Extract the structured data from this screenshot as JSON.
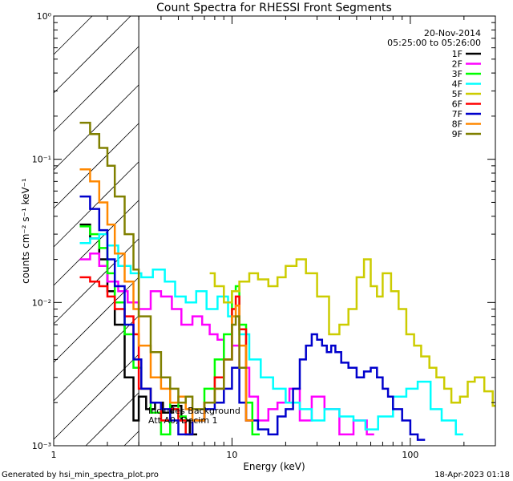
{
  "chart_data": {
    "type": "line",
    "title": "Count Spectra for RHESSI Front Segments",
    "xlabel": "Energy (keV)",
    "ylabel": "counts cm⁻² s⁻¹ keV⁻¹",
    "xscale": "log",
    "yscale": "log",
    "xlim": [
      1,
      300
    ],
    "ylim": [
      0.001,
      1
    ],
    "x_ticks": [
      {
        "value": 1,
        "label": "1"
      },
      {
        "value": 10,
        "label": "10"
      },
      {
        "value": 100,
        "label": "100"
      }
    ],
    "y_ticks": [
      {
        "value": 1,
        "label": "10⁰"
      },
      {
        "value": 0.1,
        "label": "10⁻¹"
      },
      {
        "value": 0.01,
        "label": "10⁻²"
      },
      {
        "value": 0.001,
        "label": "10⁻³"
      }
    ],
    "date": "20-Nov-2014",
    "time_range": "05:25:00 to 05:26:00",
    "shaded_region": {
      "x_start": 1,
      "x_end": 3
    },
    "annotation_lines": [
      "Includes Background",
      "Att A0, Decim 1"
    ],
    "footer_left": "Generated by hsi_min_spectra_plot.pro",
    "footer_right": "18-Apr-2023 01:18",
    "legend_position": "top-right",
    "series": [
      {
        "name": "1F",
        "color": "#000000",
        "x": [
          1.4,
          1.6,
          1.8,
          2.0,
          2.2,
          2.5,
          2.8,
          3.0,
          3.3,
          3.7,
          4.1,
          4.6,
          5.2,
          5.8
        ],
        "y": [
          0.035,
          0.028,
          0.02,
          0.012,
          0.007,
          0.003,
          0.0015,
          0.0022,
          0.0018,
          0.002,
          0.0017,
          0.0019,
          0.0015,
          0.0012
        ]
      },
      {
        "name": "2F",
        "color": "#ff00ff",
        "x": [
          1.4,
          1.6,
          1.8,
          2.0,
          2.3,
          2.6,
          3.0,
          3.5,
          4.0,
          4.6,
          5.2,
          6.0,
          6.8,
          7.5,
          8.3,
          9.0,
          10.0,
          11.0,
          12.5,
          14.0,
          16.0,
          18.0,
          21.0,
          24.0,
          28.0,
          33.0,
          40.0,
          48.0,
          57.0
        ],
        "y": [
          0.02,
          0.022,
          0.018,
          0.014,
          0.012,
          0.01,
          0.009,
          0.012,
          0.011,
          0.009,
          0.007,
          0.008,
          0.007,
          0.006,
          0.0055,
          0.004,
          0.005,
          0.0035,
          0.0022,
          0.0015,
          0.0018,
          0.002,
          0.0025,
          0.0015,
          0.0022,
          0.0018,
          0.0012,
          0.0015,
          0.0012
        ]
      },
      {
        "name": "3F",
        "color": "#00ff00",
        "x": [
          1.4,
          1.6,
          1.8,
          2.0,
          2.2,
          2.5,
          2.8,
          3.1,
          3.5,
          4.0,
          4.5,
          5.0,
          5.5,
          6.0,
          7.0,
          8.0,
          9.0,
          10.0,
          10.5,
          11.0,
          12.0,
          13.0
        ],
        "y": [
          0.034,
          0.03,
          0.024,
          0.016,
          0.01,
          0.006,
          0.0035,
          0.0025,
          0.0017,
          0.0012,
          0.002,
          0.0016,
          0.0012,
          0.0015,
          0.0025,
          0.004,
          0.006,
          0.012,
          0.013,
          0.007,
          0.002,
          0.0012
        ]
      },
      {
        "name": "4F",
        "color": "#00ffff",
        "x": [
          1.4,
          1.6,
          1.8,
          2.0,
          2.3,
          2.7,
          3.1,
          3.6,
          4.2,
          4.8,
          5.5,
          6.3,
          7.2,
          8.3,
          9.5,
          11.0,
          12.5,
          14.5,
          17.0,
          20.0,
          24.0,
          28.0,
          33.0,
          40.0,
          48.0,
          56.0,
          66.0,
          80.0,
          95.0,
          110.0,
          130.0,
          150.0,
          180.0
        ],
        "y": [
          0.026,
          0.028,
          0.03,
          0.025,
          0.018,
          0.016,
          0.015,
          0.017,
          0.014,
          0.011,
          0.01,
          0.012,
          0.009,
          0.011,
          0.008,
          0.006,
          0.004,
          0.003,
          0.0025,
          0.002,
          0.0018,
          0.0015,
          0.0018,
          0.0016,
          0.0015,
          0.0013,
          0.0016,
          0.0022,
          0.0025,
          0.0028,
          0.0018,
          0.0015,
          0.0012
        ]
      },
      {
        "name": "5F",
        "color": "#cccc00",
        "x": [
          7.5,
          8.0,
          9.0,
          10.0,
          11.0,
          12.5,
          14.0,
          16.0,
          18.0,
          20.0,
          23.0,
          26.0,
          30.0,
          35.0,
          40.0,
          45.0,
          50.0,
          55.0,
          60.0,
          65.0,
          70.0,
          78.0,
          86.0,
          95.0,
          105.0,
          115.0,
          128.0,
          140.0,
          155.0,
          170.0,
          190.0,
          210.0,
          230.0,
          260.0,
          290.0
        ],
        "y": [
          0.016,
          0.013,
          0.01,
          0.012,
          0.014,
          0.016,
          0.0145,
          0.013,
          0.015,
          0.018,
          0.02,
          0.016,
          0.011,
          0.006,
          0.007,
          0.009,
          0.015,
          0.02,
          0.013,
          0.011,
          0.016,
          0.012,
          0.009,
          0.006,
          0.005,
          0.0042,
          0.0035,
          0.003,
          0.0025,
          0.002,
          0.0022,
          0.0028,
          0.003,
          0.0024,
          0.0019
        ]
      },
      {
        "name": "6F",
        "color": "#ff0000",
        "x": [
          1.4,
          1.6,
          1.8,
          2.0,
          2.2,
          2.5,
          2.8,
          3.0,
          3.5,
          4.0,
          4.5,
          5.0,
          5.5,
          6.0,
          7.0,
          8.0,
          9.0,
          10.0,
          10.5,
          11.0,
          12.0
        ],
        "y": [
          0.015,
          0.014,
          0.013,
          0.011,
          0.009,
          0.008,
          0.006,
          0.0025,
          0.002,
          0.0015,
          0.0018,
          0.0015,
          0.0012,
          0.0015,
          0.002,
          0.003,
          0.004,
          0.009,
          0.011,
          0.0065,
          0.0015
        ]
      },
      {
        "name": "7F",
        "color": "#0000cc",
        "x": [
          1.4,
          1.6,
          1.8,
          2.0,
          2.2,
          2.5,
          2.8,
          3.1,
          3.5,
          4.0,
          4.5,
          5.0,
          6.0,
          7.0,
          8.0,
          9.0,
          10.0,
          11.0,
          12.0,
          14.0,
          16.0,
          18.0,
          20.0,
          22.0,
          24.0,
          26.0,
          28.0,
          30.0,
          32.0,
          34.0,
          36.0,
          38.0,
          41.0,
          45.0,
          50.0,
          55.0,
          60.0,
          65.0,
          70.0,
          75.0,
          80.0,
          90.0,
          100.0,
          110.0
        ],
        "y": [
          0.055,
          0.045,
          0.032,
          0.02,
          0.013,
          0.007,
          0.004,
          0.0025,
          0.002,
          0.0018,
          0.0015,
          0.0012,
          0.0015,
          0.0018,
          0.002,
          0.0025,
          0.0035,
          0.002,
          0.0015,
          0.0013,
          0.0012,
          0.0016,
          0.0018,
          0.0025,
          0.004,
          0.005,
          0.006,
          0.0055,
          0.005,
          0.0045,
          0.005,
          0.0045,
          0.0038,
          0.0035,
          0.003,
          0.0033,
          0.0035,
          0.003,
          0.0025,
          0.0022,
          0.0018,
          0.0015,
          0.0012,
          0.0011
        ]
      },
      {
        "name": "8F",
        "color": "#ff8800",
        "x": [
          1.4,
          1.6,
          1.8,
          2.0,
          2.2,
          2.5,
          2.8,
          3.0,
          3.5,
          4.0,
          4.5,
          5.0,
          5.5,
          6.0,
          7.0,
          8.0,
          9.0,
          10.0,
          10.5,
          11.0,
          12.0
        ],
        "y": [
          0.085,
          0.07,
          0.05,
          0.035,
          0.022,
          0.014,
          0.009,
          0.005,
          0.003,
          0.0025,
          0.002,
          0.0022,
          0.0018,
          0.0015,
          0.002,
          0.0025,
          0.004,
          0.008,
          0.0095,
          0.005,
          0.0015
        ]
      },
      {
        "name": "9F",
        "color": "#808000",
        "x": [
          1.4,
          1.6,
          1.8,
          2.0,
          2.2,
          2.5,
          2.8,
          3.0,
          3.5,
          4.0,
          4.5,
          5.0,
          5.5,
          6.0,
          7.0,
          8.0,
          9.0,
          10.0,
          10.5,
          11.0
        ],
        "y": [
          0.18,
          0.15,
          0.12,
          0.09,
          0.055,
          0.03,
          0.017,
          0.008,
          0.0045,
          0.003,
          0.0025,
          0.002,
          0.0022,
          0.0018,
          0.002,
          0.0025,
          0.004,
          0.007,
          0.008,
          0.0035
        ]
      }
    ]
  }
}
